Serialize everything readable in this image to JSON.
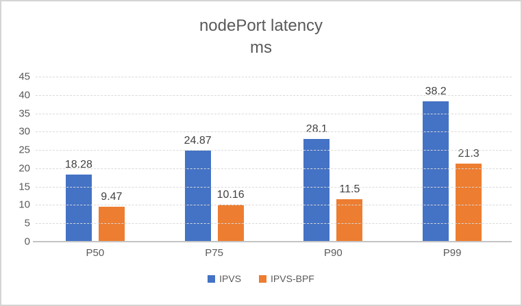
{
  "window": {
    "background_color": "#ffffff",
    "frame_border_color": "#d4d4d4"
  },
  "chart_data": {
    "type": "bar",
    "title": "nodePort latency",
    "subtitle": "ms",
    "categories": [
      "P50",
      "P75",
      "P90",
      "P99"
    ],
    "series": [
      {
        "name": "IPVS",
        "color": "#4472C4",
        "values": [
          18.28,
          24.87,
          28.1,
          38.2
        ],
        "data_labels": [
          "18.28",
          "24.87",
          "28.1",
          "38.2"
        ]
      },
      {
        "name": "IPVS-BPF",
        "color": "#ED7D31",
        "values": [
          9.47,
          10.16,
          11.5,
          21.3
        ],
        "data_labels": [
          "9.47",
          "10.16",
          "11.5",
          "21.3"
        ]
      }
    ],
    "xlabel": "",
    "ylabel": "",
    "ylim": [
      0,
      45
    ],
    "ytick_step": 5,
    "ytick_labels": [
      "0",
      "5",
      "10",
      "15",
      "20",
      "25",
      "30",
      "35",
      "40",
      "45"
    ],
    "grid": true,
    "gridline_color": "#d9d9d9",
    "axis_line_color": "#c3c3c3",
    "title_color": "#595959",
    "tick_label_color": "#595959",
    "data_label_color": "#404040",
    "legend_position": "bottom"
  }
}
